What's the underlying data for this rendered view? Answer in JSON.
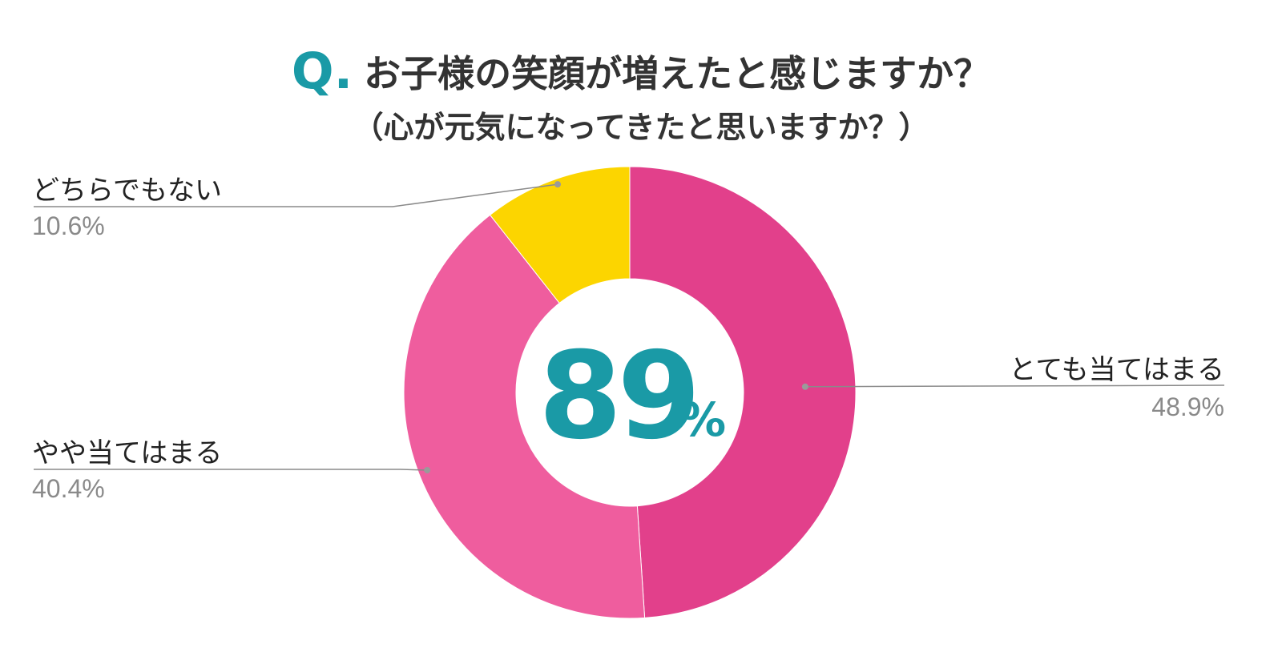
{
  "chart_data": {
    "type": "pie",
    "variant": "donut",
    "title_mark": "Q.",
    "title": "お子様の笑顔が増えたと感じますか？",
    "subtitle": "（心が元気になってきたと思いますか？）",
    "center_value": "89",
    "center_unit": "%",
    "slices": [
      {
        "label": "とても当てはまる",
        "value": 48.9,
        "value_text": "48.9%",
        "color": "#e2408b"
      },
      {
        "label": "やや当てはまる",
        "value": 40.4,
        "value_text": "40.4%",
        "color": "#ef5d9e"
      },
      {
        "label": "どちらでもない",
        "value": 10.6,
        "value_text": "10.6%",
        "color": "#fcd500"
      }
    ]
  }
}
